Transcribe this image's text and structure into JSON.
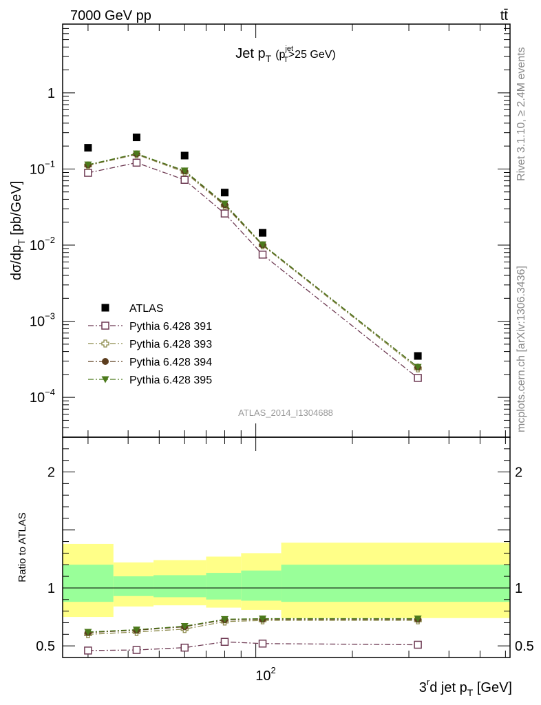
{
  "header": {
    "left": "7000 GeV pp",
    "right": "tt̄"
  },
  "side_labels": {
    "rivet": "Rivet 3.1.10, ≥ 2.4M events",
    "mcplots": "mcplots.cern.ch [arXiv:1306.3436]"
  },
  "chart_data": [
    {
      "type": "scatter",
      "title": "Jet p",
      "title_sub": "T",
      "title_paren_open": "(p",
      "title_paren_sup": "jet",
      "title_paren_sub": "T",
      "title_paren_rest": ">25 GeV)",
      "ylabel": "dσ/dp",
      "ylabel_sub": "T",
      "ylabel_rest": " [pb/GeV]",
      "yscale": "log",
      "xscale": "log",
      "xlim": [
        25,
        620
      ],
      "ylim": [
        3e-05,
        8
      ],
      "ytick_labels": [
        {
          "value": 1,
          "mant": "1",
          "exp": ""
        },
        {
          "value": 0.1,
          "mant": "10",
          "exp": "−1"
        },
        {
          "value": 0.01,
          "mant": "10",
          "exp": "−2"
        },
        {
          "value": 0.001,
          "mant": "10",
          "exp": "−3"
        },
        {
          "value": 0.0001,
          "mant": "10",
          "exp": "−4"
        }
      ],
      "watermark": "ATLAS_2014_I1304688",
      "legend_position": "lower-left",
      "x": [
        30,
        42.5,
        60,
        80,
        105,
        320
      ],
      "series": [
        {
          "name": "ATLAS",
          "marker": "filled-square",
          "color": "#000000",
          "values": [
            0.19,
            0.26,
            0.15,
            0.049,
            0.0145,
            0.00035
          ]
        },
        {
          "name": "Pythia 6.428 391",
          "marker": "open-square",
          "color": "#6e3a53",
          "line": "dash-dot",
          "values": [
            0.089,
            0.121,
            0.072,
            0.026,
            0.0075,
            0.00018
          ]
        },
        {
          "name": "Pythia 6.428 393",
          "marker": "open-cross",
          "color": "#8c8a4b",
          "line": "dash-dot",
          "values": [
            0.111,
            0.155,
            0.091,
            0.033,
            0.0099,
            0.00024
          ]
        },
        {
          "name": "Pythia 6.428 394",
          "marker": "filled-circle",
          "color": "#5c3d1e",
          "line": "dash-dot",
          "values": [
            0.113,
            0.158,
            0.094,
            0.034,
            0.0101,
            0.00025
          ]
        },
        {
          "name": "Pythia 6.428 395",
          "marker": "filled-triangle-down",
          "color": "#4c7a1c",
          "line": "dash-dot",
          "values": [
            0.114,
            0.159,
            0.095,
            0.035,
            0.0102,
            0.00025
          ]
        }
      ]
    },
    {
      "type": "scatter",
      "ylabel": "Ratio to ATLAS",
      "xlabel": "3",
      "xlabel_sup": "r",
      "xlabel_mid": "d jet p",
      "xlabel_sub": "T",
      "xlabel_rest": " [GeV]",
      "xscale": "log",
      "xlim": [
        25,
        620
      ],
      "ylim": [
        0.4,
        2.3
      ],
      "ytick_labels": [
        {
          "value": 2,
          "label": "2"
        },
        {
          "value": 1,
          "label": "1"
        },
        {
          "value": 0.5,
          "label": "0.5"
        }
      ],
      "xtick_label": {
        "value": 100,
        "mant": "10",
        "exp": "2"
      },
      "bins": [
        [
          25,
          36
        ],
        [
          36,
          48
        ],
        [
          48,
          70
        ],
        [
          70,
          90
        ],
        [
          90,
          120
        ],
        [
          120,
          620
        ]
      ],
      "band_inner": [
        [
          0.88,
          1.2
        ],
        [
          0.93,
          1.1
        ],
        [
          0.92,
          1.11
        ],
        [
          0.9,
          1.13
        ],
        [
          0.89,
          1.15
        ],
        [
          0.88,
          1.2
        ]
      ],
      "band_outer": [
        [
          0.75,
          1.38
        ],
        [
          0.84,
          1.22
        ],
        [
          0.85,
          1.24
        ],
        [
          0.83,
          1.27
        ],
        [
          0.81,
          1.3
        ],
        [
          0.74,
          1.39
        ]
      ],
      "band_inner_color": "#99ff99",
      "band_outer_color": "#ffff88",
      "x": [
        30,
        42.5,
        60,
        80,
        105,
        320
      ],
      "series": [
        {
          "name": "Pythia 6.428 391",
          "marker": "open-square",
          "color": "#6e3a53",
          "values": [
            0.46,
            0.465,
            0.485,
            0.535,
            0.52,
            0.51
          ]
        },
        {
          "name": "Pythia 6.428 393",
          "marker": "open-cross",
          "color": "#8c8a4b",
          "values": [
            0.6,
            0.62,
            0.645,
            0.71,
            0.72,
            0.72
          ]
        },
        {
          "name": "Pythia 6.428 394",
          "marker": "filled-circle",
          "color": "#5c3d1e",
          "values": [
            0.615,
            0.635,
            0.665,
            0.725,
            0.73,
            0.73
          ]
        },
        {
          "name": "Pythia 6.428 395",
          "marker": "filled-triangle-down",
          "color": "#4c7a1c",
          "values": [
            0.62,
            0.64,
            0.67,
            0.73,
            0.735,
            0.735
          ]
        }
      ]
    }
  ]
}
